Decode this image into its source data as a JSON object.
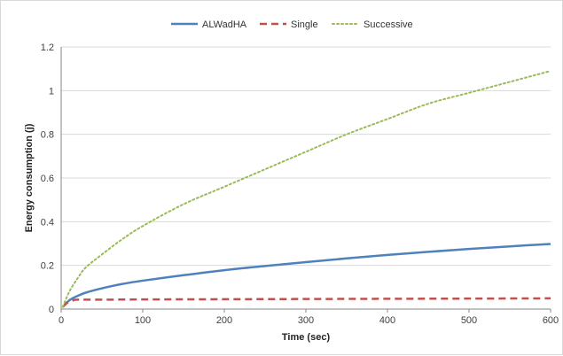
{
  "chart_data": {
    "type": "line",
    "title": "",
    "xlabel": "Time (sec)",
    "ylabel": "Energy consumption (j)",
    "xlim": [
      0,
      600
    ],
    "ylim": [
      0,
      1.2
    ],
    "x_ticks": [
      0,
      100,
      200,
      300,
      400,
      500,
      600
    ],
    "y_ticks": [
      0,
      0.2,
      0.4,
      0.6,
      0.8,
      1,
      1.2
    ],
    "grid": "horizontal",
    "legend_position": "top",
    "series": [
      {
        "name": "ALWadHA",
        "color": "#4f81bd",
        "style": "solid",
        "x": [
          2,
          10,
          20,
          30,
          50,
          75,
          100,
          150,
          200,
          250,
          300,
          350,
          400,
          450,
          500,
          550,
          600
        ],
        "y": [
          0.01,
          0.04,
          0.06,
          0.075,
          0.095,
          0.115,
          0.13,
          0.155,
          0.178,
          0.197,
          0.215,
          0.232,
          0.248,
          0.262,
          0.275,
          0.287,
          0.298
        ]
      },
      {
        "name": "Single",
        "color": "#c0504d",
        "style": "dashed",
        "x": [
          2,
          8,
          15,
          20,
          50,
          100,
          200,
          300,
          400,
          500,
          600
        ],
        "y": [
          0.01,
          0.03,
          0.04,
          0.043,
          0.043,
          0.044,
          0.045,
          0.046,
          0.047,
          0.048,
          0.049
        ]
      },
      {
        "name": "Successive",
        "color": "#9bbb59",
        "style": "dotted",
        "x": [
          2,
          10,
          20,
          30,
          50,
          75,
          100,
          150,
          200,
          250,
          300,
          350,
          400,
          450,
          500,
          550,
          600
        ],
        "y": [
          0.01,
          0.08,
          0.14,
          0.19,
          0.25,
          0.32,
          0.38,
          0.48,
          0.56,
          0.64,
          0.72,
          0.8,
          0.87,
          0.94,
          0.99,
          1.04,
          1.09
        ]
      }
    ]
  }
}
